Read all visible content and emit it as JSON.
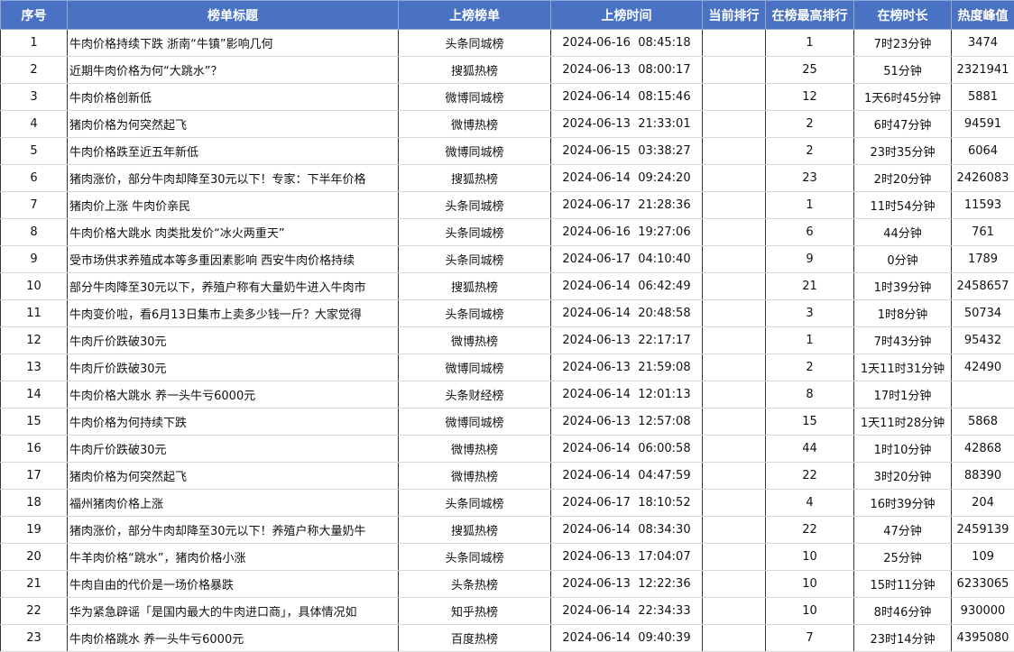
{
  "table": {
    "header": [
      "序号",
      "榜单标题",
      "上榜榜单",
      "上榜时间",
      "当前排行",
      "在榜最高排行",
      "在榜时长",
      "热度峰值"
    ],
    "rows": [
      [
        1,
        "牛肉价格持续下跌 浙南“牛镇”影响几何",
        "头条同城榜",
        "2024-06-16  08:45:18",
        null,
        1,
        "7时23分钟",
        3474
      ],
      [
        2,
        "近期牛肉价格为何“大跳水”？",
        "搜狐热榜",
        "2024-06-13  08:00:17",
        null,
        25,
        "51分钟",
        2321941
      ],
      [
        3,
        "牛肉价格创新低",
        "微博同城榜",
        "2024-06-14  08:15:46",
        null,
        12,
        "1天6时45分钟",
        5881
      ],
      [
        4,
        "猪肉价格为何突然起飞",
        "微博热榜",
        "2024-06-13  21:33:01",
        null,
        2,
        "6时47分钟",
        94591
      ],
      [
        5,
        "牛肉价格跌至近五年新低",
        "微博同城榜",
        "2024-06-15  03:38:27",
        null,
        2,
        "23时35分钟",
        6064
      ],
      [
        6,
        "猪肉涨价，部分牛肉却降至30元以下！专家：下半年价格",
        "搜狐热榜",
        "2024-06-14  09:24:20",
        null,
        23,
        "2时20分钟",
        2426083
      ],
      [
        7,
        "猪肉价上涨 牛肉价亲民",
        "头条同城榜",
        "2024-06-17  21:28:36",
        null,
        1,
        "11时54分钟",
        11593
      ],
      [
        8,
        "牛肉价格大跳水 肉类批发价“冰火两重天”",
        "头条同城榜",
        "2024-06-16  19:27:06",
        null,
        6,
        "44分钟",
        761
      ],
      [
        9,
        "受市场供求养殖成本等多重因素影响 西安牛肉价格持续",
        "头条同城榜",
        "2024-06-17  04:10:40",
        null,
        9,
        "0分钟",
        1789
      ],
      [
        10,
        "部分牛肉降至30元以下，养殖户称有大量奶牛进入牛肉市",
        "搜狐热榜",
        "2024-06-14  06:42:49",
        null,
        21,
        "1时39分钟",
        2458657
      ],
      [
        11,
        "牛肉变价啦，看6月13日集市上卖多少钱一斤？大家觉得",
        "头条同城榜",
        "2024-06-14  20:48:58",
        null,
        3,
        "1时8分钟",
        50734
      ],
      [
        12,
        "牛肉斤价跌破30元",
        "微博热榜",
        "2024-06-13  22:17:17",
        null,
        1,
        "7时43分钟",
        95432
      ],
      [
        13,
        "牛肉斤价跌破30元",
        "微博同城榜",
        "2024-06-13  21:59:08",
        null,
        2,
        "1天11时31分钟",
        42490
      ],
      [
        14,
        "牛肉价格大跳水 养一头牛亏6000元",
        "头条财经榜",
        "2024-06-14  12:01:13",
        null,
        8,
        "17时1分钟",
        null
      ],
      [
        15,
        "牛肉价格为何持续下跌",
        "微博同城榜",
        "2024-06-13  12:57:08",
        null,
        15,
        "1天11时28分钟",
        5868
      ],
      [
        16,
        "牛肉斤价跌破30元",
        "微博热榜",
        "2024-06-14  06:00:58",
        null,
        44,
        "1时10分钟",
        42868
      ],
      [
        17,
        "猪肉价格为何突然起飞",
        "微博热榜",
        "2024-06-14  04:47:59",
        null,
        22,
        "3时20分钟",
        88390
      ],
      [
        18,
        "福州猪肉价格上涨",
        "头条同城榜",
        "2024-06-17  18:10:52",
        null,
        4,
        "16时39分钟",
        204
      ],
      [
        19,
        "猪肉涨价，部分牛肉却降至30元以下！养殖户称大量奶牛",
        "搜狐热榜",
        "2024-06-14  08:34:30",
        null,
        22,
        "47分钟",
        2459139
      ],
      [
        20,
        "牛羊肉价格“跳水”，猪肉价格小涨",
        "头条同城榜",
        "2024-06-13  17:04:07",
        null,
        10,
        "25分钟",
        109
      ],
      [
        21,
        "牛肉自由的代价是一场价格暴跌",
        "头条热榜",
        "2024-06-13  12:22:36",
        null,
        10,
        "15时11分钟",
        6233065
      ],
      [
        22,
        "华为紧急辟谣「是国内最大的牛肉进口商」，具体情况如",
        "知乎热榜",
        "2024-06-14  22:34:33",
        null,
        10,
        "8时46分钟",
        930000
      ],
      [
        23,
        "牛肉价格跳水 养一头牛亏6000元",
        "百度热榜",
        "2024-06-14  09:40:39",
        null,
        7,
        "23时14分钟",
        4395080
      ]
    ]
  }
}
